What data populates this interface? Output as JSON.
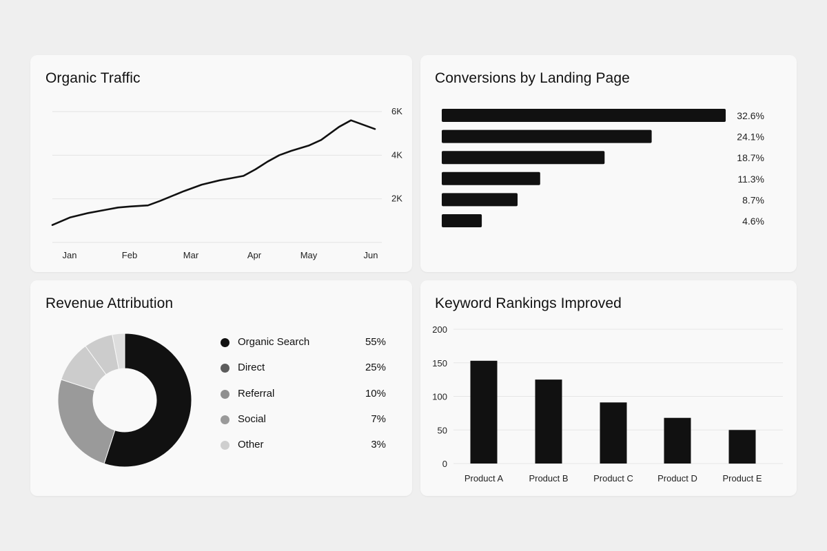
{
  "traffic": {
    "title": "Organic Traffic",
    "chart_data": {
      "type": "line",
      "title": "Organic Traffic",
      "xlabel": "",
      "ylabel": "",
      "x_tick_labels": [
        "Jan",
        "Feb",
        "Mar",
        "Apr",
        "May",
        "Jun"
      ],
      "y_tick_labels": [
        "2K",
        "4K",
        "6K"
      ],
      "y_ticks": [
        2000,
        4000,
        6000
      ],
      "ylim": [
        0,
        6000
      ],
      "xlim": [
        0,
        5.4
      ],
      "grid": true,
      "series": [
        {
          "values": [
            {
              "x": 0.0,
              "y": 800
            },
            {
              "x": 0.3,
              "y": 1150
            },
            {
              "x": 0.6,
              "y": 1350
            },
            {
              "x": 0.9,
              "y": 1500
            },
            {
              "x": 1.1,
              "y": 1600
            },
            {
              "x": 1.3,
              "y": 1650
            },
            {
              "x": 1.6,
              "y": 1700
            },
            {
              "x": 1.8,
              "y": 1900
            },
            {
              "x": 2.2,
              "y": 2350
            },
            {
              "x": 2.5,
              "y": 2650
            },
            {
              "x": 2.8,
              "y": 2850
            },
            {
              "x": 3.0,
              "y": 2950
            },
            {
              "x": 3.2,
              "y": 3050
            },
            {
              "x": 3.4,
              "y": 3350
            },
            {
              "x": 3.6,
              "y": 3700
            },
            {
              "x": 3.8,
              "y": 4000
            },
            {
              "x": 4.0,
              "y": 4200
            },
            {
              "x": 4.3,
              "y": 4450
            },
            {
              "x": 4.5,
              "y": 4700
            },
            {
              "x": 4.8,
              "y": 5300
            },
            {
              "x": 5.0,
              "y": 5600
            },
            {
              "x": 5.4,
              "y": 5200
            }
          ]
        }
      ]
    }
  },
  "conversions": {
    "title": "Conversions by Landing Page",
    "chart_data": {
      "type": "bar",
      "orientation": "horizontal",
      "title": "Conversions by Landing Page",
      "xlabel": "",
      "ylabel": "",
      "values": [
        32.6,
        24.1,
        18.7,
        11.3,
        8.7,
        4.6
      ],
      "value_labels": [
        "32.6%",
        "24.1%",
        "18.7%",
        "11.3%",
        "8.7%",
        "4.6%"
      ],
      "xlim": [
        0,
        32.6
      ]
    }
  },
  "revenue": {
    "title": "Revenue Attribution",
    "chart_data": {
      "type": "pie",
      "donut": true,
      "title": "Revenue Attribution",
      "categories": [
        "Organic Search",
        "Direct",
        "Referral",
        "Social",
        "Other"
      ],
      "values": [
        55,
        25,
        10,
        7,
        3
      ],
      "value_labels": [
        "55%",
        "25%",
        "10%",
        "7%",
        "3%"
      ],
      "colors": [
        "#111111",
        "#5c5c5c",
        "#8f8f8f",
        "#9a9a9a",
        "#cfcfcf"
      ],
      "slice_colors": [
        "#111111",
        "#9a9a9a",
        "#cccccc",
        "#dddddd"
      ],
      "legend_position": "right"
    }
  },
  "keywords": {
    "title": "Keyword Rankings Improved",
    "chart_data": {
      "type": "bar",
      "title": "Keyword Rankings Improved",
      "xlabel": "",
      "ylabel": "",
      "categories": [
        "Product A",
        "Product B",
        "Product C",
        "Product D",
        "Product E"
      ],
      "values": [
        153,
        125,
        91,
        68,
        50
      ],
      "y_ticks": [
        0,
        50,
        100,
        150,
        200
      ],
      "ylim": [
        0,
        200
      ],
      "grid": true
    }
  }
}
